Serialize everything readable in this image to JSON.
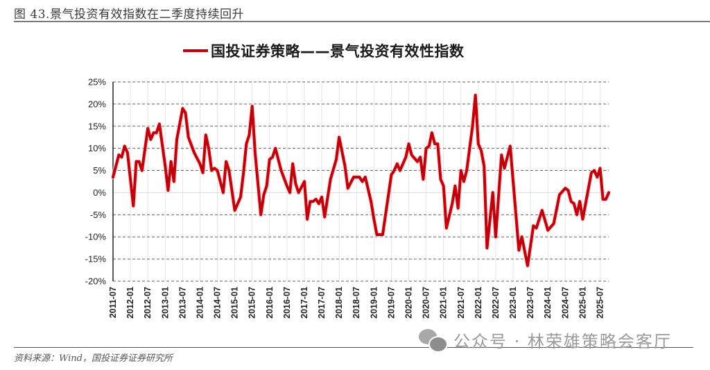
{
  "figure": {
    "title": "图 43.景气投资有效指数在二季度持续回升",
    "source": "资料来源：Wind，国投证券证券研究所",
    "watermark": "公众号 · 林荣雄策略会客厅",
    "watermark_icon": "wechat-icon"
  },
  "legend": {
    "label": "国投证券策略——景气投资有效性指数",
    "color": "#c0000b"
  },
  "chart_data": {
    "type": "line",
    "title": "国投证券策略——景气投资有效性指数",
    "xlabel": "",
    "ylabel": "",
    "ylim": [
      -20,
      25
    ],
    "y_ticks": [
      "25%",
      "20%",
      "15%",
      "10%",
      "5%",
      "0%",
      "-5%",
      "-10%",
      "-15%",
      "-20%"
    ],
    "y_tick_values": [
      25,
      20,
      15,
      10,
      5,
      0,
      -5,
      -10,
      -15,
      -20
    ],
    "x_tick_labels": [
      "2011-07",
      "2012-01",
      "2012-07",
      "2013-01",
      "2013-07",
      "2014-01",
      "2014-07",
      "2015-01",
      "2015-07",
      "2016-01",
      "2016-07",
      "2017-01",
      "2017-07",
      "2018-01",
      "2018-07",
      "2019-01",
      "2019-07",
      "2020-01",
      "2020-07",
      "2021-01",
      "2021-07",
      "2022-01",
      "2022-07",
      "2023-01",
      "2023-07",
      "2024-01",
      "2024-07",
      "2025-01",
      "2025-07"
    ],
    "grid": true,
    "legend_position": "top",
    "series": [
      {
        "name": "国投证券策略——景气投资有效性指数",
        "color": "#c0000b",
        "unit": "%",
        "points": [
          [
            "2011-07",
            3.5
          ],
          [
            "2011-09",
            8.5
          ],
          [
            "2011-10",
            8.0
          ],
          [
            "2011-11",
            10.5
          ],
          [
            "2011-12",
            9.0
          ],
          [
            "2012-02",
            -3.0
          ],
          [
            "2012-03",
            7.0
          ],
          [
            "2012-04",
            7.0
          ],
          [
            "2012-05",
            5.0
          ],
          [
            "2012-07",
            14.5
          ],
          [
            "2012-08",
            12.0
          ],
          [
            "2012-09",
            13.5
          ],
          [
            "2012-10",
            13.5
          ],
          [
            "2012-11",
            15.5
          ],
          [
            "2013-01",
            6.0
          ],
          [
            "2013-02",
            0.5
          ],
          [
            "2013-03",
            7.0
          ],
          [
            "2013-04",
            2.5
          ],
          [
            "2013-05",
            12.0
          ],
          [
            "2013-07",
            19.0
          ],
          [
            "2013-08",
            18.0
          ],
          [
            "2013-09",
            12.5
          ],
          [
            "2013-11",
            9.0
          ],
          [
            "2014-01",
            6.5
          ],
          [
            "2014-02",
            4.5
          ],
          [
            "2014-03",
            13.0
          ],
          [
            "2014-04",
            10.0
          ],
          [
            "2014-05",
            5.0
          ],
          [
            "2014-06",
            5.5
          ],
          [
            "2014-07",
            5.0
          ],
          [
            "2014-09",
            0.0
          ],
          [
            "2014-10",
            7.0
          ],
          [
            "2014-11",
            5.0
          ],
          [
            "2015-01",
            -4.0
          ],
          [
            "2015-03",
            -1.0
          ],
          [
            "2015-04",
            4.5
          ],
          [
            "2015-05",
            11.0
          ],
          [
            "2015-06",
            13.0
          ],
          [
            "2015-07",
            19.5
          ],
          [
            "2015-08",
            9.0
          ],
          [
            "2015-10",
            -5.0
          ],
          [
            "2015-11",
            -0.5
          ],
          [
            "2015-12",
            1.5
          ],
          [
            "2016-01",
            7.5
          ],
          [
            "2016-02",
            8.0
          ],
          [
            "2016-03",
            10.0
          ],
          [
            "2016-05",
            5.0
          ],
          [
            "2016-07",
            1.5
          ],
          [
            "2016-08",
            0.0
          ],
          [
            "2016-09",
            6.5
          ],
          [
            "2016-10",
            2.0
          ],
          [
            "2016-11",
            0.0
          ],
          [
            "2017-01",
            2.5
          ],
          [
            "2017-02",
            -6.0
          ],
          [
            "2017-03",
            -2.0
          ],
          [
            "2017-04",
            -2.0
          ],
          [
            "2017-05",
            -1.5
          ],
          [
            "2017-06",
            -2.5
          ],
          [
            "2017-07",
            -1.0
          ],
          [
            "2017-08",
            -5.5
          ],
          [
            "2017-10",
            3.0
          ],
          [
            "2017-12",
            7.5
          ],
          [
            "2018-01",
            12.5
          ],
          [
            "2018-03",
            6.0
          ],
          [
            "2018-04",
            1.0
          ],
          [
            "2018-06",
            3.5
          ],
          [
            "2018-08",
            3.5
          ],
          [
            "2018-09",
            2.5
          ],
          [
            "2018-10",
            3.5
          ],
          [
            "2018-12",
            -2.0
          ],
          [
            "2019-01",
            -6.0
          ],
          [
            "2019-02",
            -9.5
          ],
          [
            "2019-04",
            -9.5
          ],
          [
            "2019-07",
            4.0
          ],
          [
            "2019-08",
            5.0
          ],
          [
            "2019-09",
            6.5
          ],
          [
            "2019-10",
            5.0
          ],
          [
            "2019-12",
            8.0
          ],
          [
            "2020-01",
            11.0
          ],
          [
            "2020-02",
            8.5
          ],
          [
            "2020-04",
            7.0
          ],
          [
            "2020-05",
            8.0
          ],
          [
            "2020-06",
            3.0
          ],
          [
            "2020-07",
            10.0
          ],
          [
            "2020-08",
            10.5
          ],
          [
            "2020-09",
            13.5
          ],
          [
            "2020-10",
            11.0
          ],
          [
            "2020-11",
            11.0
          ],
          [
            "2020-12",
            3.0
          ],
          [
            "2021-01",
            1.5
          ],
          [
            "2021-02",
            -8.0
          ],
          [
            "2021-04",
            -2.5
          ],
          [
            "2021-05",
            1.5
          ],
          [
            "2021-06",
            -3.5
          ],
          [
            "2021-07",
            5.0
          ],
          [
            "2021-08",
            2.5
          ],
          [
            "2021-09",
            5.0
          ],
          [
            "2021-11",
            15.0
          ],
          [
            "2021-12",
            22.0
          ],
          [
            "2022-01",
            11.0
          ],
          [
            "2022-02",
            9.5
          ],
          [
            "2022-03",
            6.0
          ],
          [
            "2022-04",
            -12.5
          ],
          [
            "2022-06",
            0.0
          ],
          [
            "2022-07",
            -10.0
          ],
          [
            "2022-09",
            8.5
          ],
          [
            "2022-10",
            5.5
          ],
          [
            "2022-12",
            10.5
          ],
          [
            "2023-03",
            -13.0
          ],
          [
            "2023-04",
            -10.0
          ],
          [
            "2023-06",
            -16.5
          ],
          [
            "2023-08",
            -7.5
          ],
          [
            "2023-09",
            -8.0
          ],
          [
            "2023-11",
            -4.0
          ],
          [
            "2024-01",
            -8.5
          ],
          [
            "2024-03",
            -7.0
          ],
          [
            "2024-05",
            -0.5
          ],
          [
            "2024-07",
            1.0
          ],
          [
            "2024-08",
            0.5
          ],
          [
            "2024-09",
            -2.0
          ],
          [
            "2024-10",
            -2.5
          ],
          [
            "2024-11",
            -5.0
          ],
          [
            "2024-12",
            -2.0
          ],
          [
            "2025-01",
            -6.0
          ],
          [
            "2025-04",
            4.5
          ],
          [
            "2025-05",
            5.0
          ],
          [
            "2025-06",
            3.5
          ],
          [
            "2025-07",
            5.5
          ],
          [
            "2025-08",
            -1.5
          ],
          [
            "2025-09",
            -1.5
          ],
          [
            "2025-10",
            0.0
          ]
        ]
      }
    ]
  }
}
